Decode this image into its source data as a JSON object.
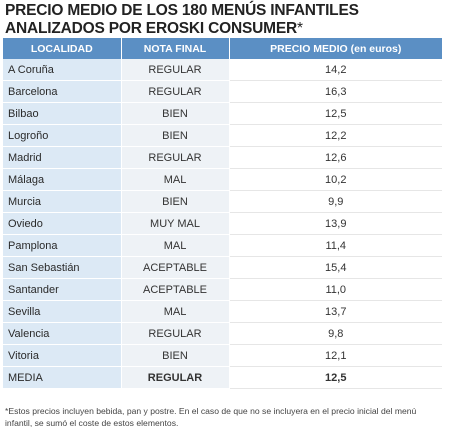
{
  "title_line1": "PRECIO MEDIO DE LOS 180 MENÚS INFANTILES",
  "title_line2": "ANALIZADOS POR EROSKI CONSUMER",
  "title_asterisk": "*",
  "headers": [
    "LOCALIDAD",
    "NOTA FINAL",
    "PRECIO MEDIO (en euros)"
  ],
  "rows": [
    {
      "localidad": "A Coruña",
      "nota": "REGULAR",
      "precio": "14,2"
    },
    {
      "localidad": "Barcelona",
      "nota": "REGULAR",
      "precio": "16,3"
    },
    {
      "localidad": "Bilbao",
      "nota": "BIEN",
      "precio": "12,5"
    },
    {
      "localidad": "Logroño",
      "nota": "BIEN",
      "precio": "12,2"
    },
    {
      "localidad": "Madrid",
      "nota": "REGULAR",
      "precio": "12,6"
    },
    {
      "localidad": "Málaga",
      "nota": "MAL",
      "precio": "10,2"
    },
    {
      "localidad": "Murcia",
      "nota": "BIEN",
      "precio": "9,9"
    },
    {
      "localidad": "Oviedo",
      "nota": "MUY MAL",
      "precio": "13,9"
    },
    {
      "localidad": "Pamplona",
      "nota": "MAL",
      "precio": "11,4"
    },
    {
      "localidad": "San Sebastián",
      "nota": "ACEPTABLE",
      "precio": "15,4"
    },
    {
      "localidad": "Santander",
      "nota": "ACEPTABLE",
      "precio": "11,0"
    },
    {
      "localidad": "Sevilla",
      "nota": "MAL",
      "precio": "13,7"
    },
    {
      "localidad": "Valencia",
      "nota": "REGULAR",
      "precio": "9,8"
    },
    {
      "localidad": "Vitoria",
      "nota": "BIEN",
      "precio": "12,1"
    },
    {
      "localidad": "MEDIA",
      "nota": "REGULAR",
      "precio": "12,5"
    }
  ],
  "footnote": "*Estos precios incluyen bebida, pan y postre. En el caso de que no se incluyera en el precio inicial del menú infantil, se sumó el coste de estos elementos.",
  "colors": {
    "header_bg": "#5b8fc4",
    "locality_bg": "#dce9f5",
    "nota_bg": "#eef2f6"
  }
}
